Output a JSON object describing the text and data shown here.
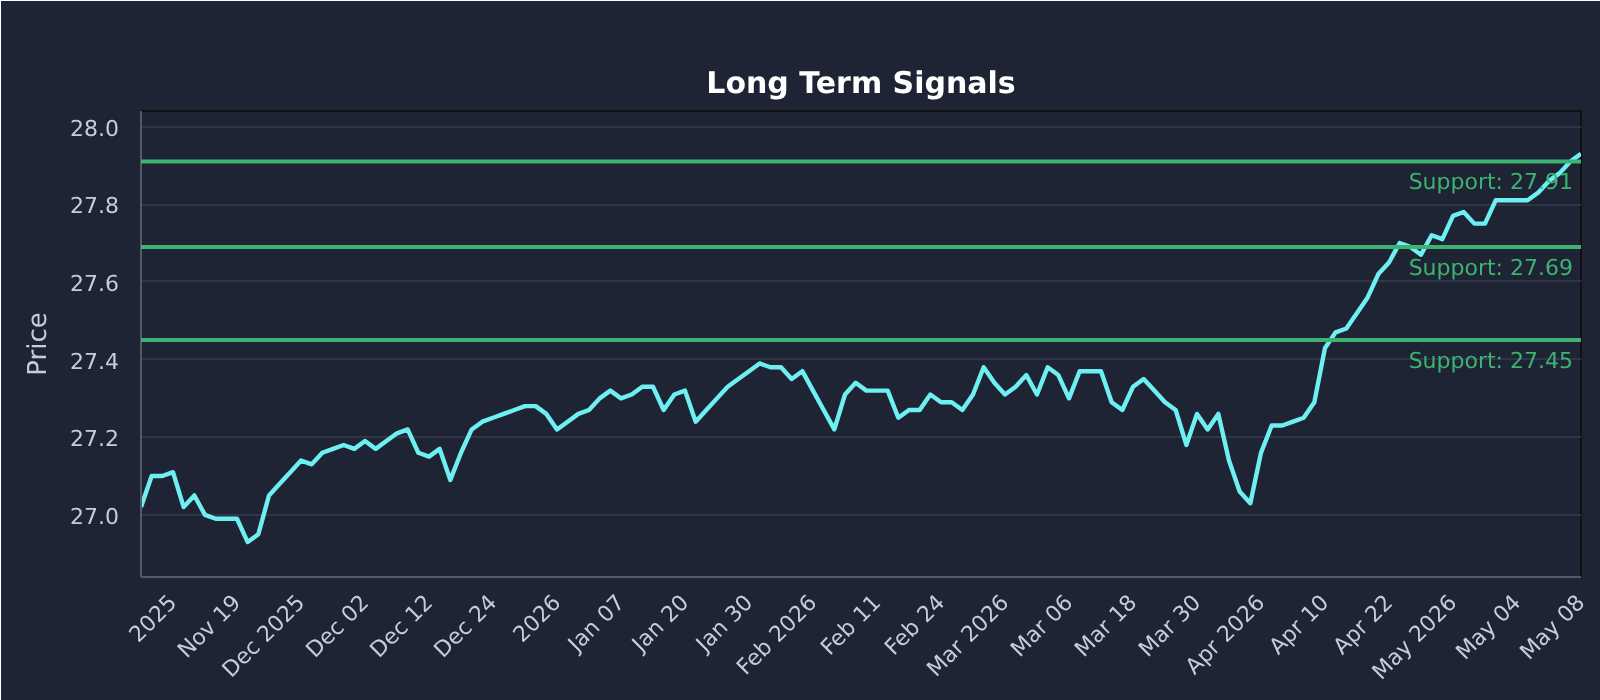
{
  "chart_data": {
    "type": "line",
    "title": "Long Term Signals",
    "ylabel": "Price",
    "categories": [
      null,
      null,
      null,
      "2025",
      null,
      null,
      null,
      null,
      null,
      "Nov 19",
      null,
      null,
      null,
      null,
      null,
      "Dec 2025",
      null,
      null,
      null,
      null,
      null,
      "Dec 02",
      null,
      null,
      null,
      null,
      null,
      "Dec 12",
      null,
      null,
      null,
      null,
      null,
      "Dec 24",
      null,
      null,
      null,
      null,
      null,
      "2026",
      null,
      null,
      null,
      null,
      null,
      "Jan 07",
      null,
      null,
      null,
      null,
      null,
      "Jan 20",
      null,
      null,
      null,
      null,
      null,
      "Jan 30",
      null,
      null,
      null,
      null,
      null,
      "Feb 2026",
      null,
      null,
      null,
      null,
      null,
      "Feb 11",
      null,
      null,
      null,
      null,
      null,
      "Feb 24",
      null,
      null,
      null,
      null,
      null,
      "Mar 2026",
      null,
      null,
      null,
      null,
      null,
      "Mar 06",
      null,
      null,
      null,
      null,
      null,
      "Mar 18",
      null,
      null,
      null,
      null,
      null,
      "Mar 30",
      null,
      null,
      null,
      null,
      null,
      "Apr 2026",
      null,
      null,
      null,
      null,
      null,
      "Apr 10",
      null,
      null,
      null,
      null,
      null,
      "Apr 22",
      null,
      null,
      null,
      null,
      null,
      "May 2026",
      null,
      null,
      null,
      null,
      null,
      "May 04",
      null,
      null,
      null,
      null,
      null,
      "May 08"
    ],
    "series": [
      {
        "color": "#6eeff2",
        "values": [
          27.02,
          27.1,
          27.1,
          27.11,
          27.02,
          27.05,
          27.0,
          26.99,
          26.99,
          26.99,
          26.93,
          26.95,
          27.05,
          27.08,
          27.11,
          27.14,
          27.13,
          27.16,
          27.17,
          27.18,
          27.17,
          27.19,
          27.17,
          27.19,
          27.21,
          27.22,
          27.16,
          27.15,
          27.17,
          27.09,
          27.16,
          27.22,
          27.24,
          27.25,
          27.26,
          27.27,
          27.28,
          27.28,
          27.26,
          27.22,
          27.24,
          27.26,
          27.27,
          27.3,
          27.32,
          27.3,
          27.31,
          27.33,
          27.33,
          27.27,
          27.31,
          27.32,
          27.24,
          27.27,
          27.3,
          27.33,
          27.35,
          27.37,
          27.39,
          27.38,
          27.38,
          27.35,
          27.37,
          27.32,
          27.27,
          27.22,
          27.31,
          27.34,
          27.32,
          27.32,
          27.32,
          27.25,
          27.27,
          27.27,
          27.31,
          27.29,
          27.29,
          27.27,
          27.31,
          27.38,
          27.34,
          27.31,
          27.33,
          27.36,
          27.31,
          27.38,
          27.36,
          27.3,
          27.37,
          27.37,
          27.37,
          27.29,
          27.27,
          27.33,
          27.35,
          27.32,
          27.29,
          27.27,
          27.18,
          27.26,
          27.22,
          27.26,
          27.14,
          27.06,
          27.03,
          27.16,
          27.23,
          27.23,
          27.24,
          27.25,
          27.29,
          27.43,
          27.47,
          27.48,
          27.52,
          27.56,
          27.62,
          27.65,
          27.7,
          27.69,
          27.67,
          27.72,
          27.71,
          27.77,
          27.78,
          27.75,
          27.75,
          27.81,
          27.81,
          27.81,
          27.81,
          27.83,
          27.86,
          27.88,
          27.91,
          27.93
        ]
      }
    ],
    "ylim": [
      26.84,
      28.04
    ],
    "yticks": [
      {
        "value": 27.0,
        "label": "27.0"
      },
      27.2,
      27.4,
      27.6,
      27.8,
      {
        "value": 28.0,
        "label": "28.0"
      }
    ],
    "ref_lines": [
      {
        "axis": "y",
        "value": 27.91,
        "label": "Support: 27.91",
        "color": "#3cb371"
      },
      {
        "axis": "y",
        "value": 27.69,
        "label": "Support: 27.69",
        "color": "#3cb371"
      },
      {
        "axis": "y",
        "value": 27.45,
        "label": "Support: 27.45",
        "color": "#3cb371"
      }
    ],
    "grid": "y",
    "line_style": "solid",
    "marker": "none"
  }
}
